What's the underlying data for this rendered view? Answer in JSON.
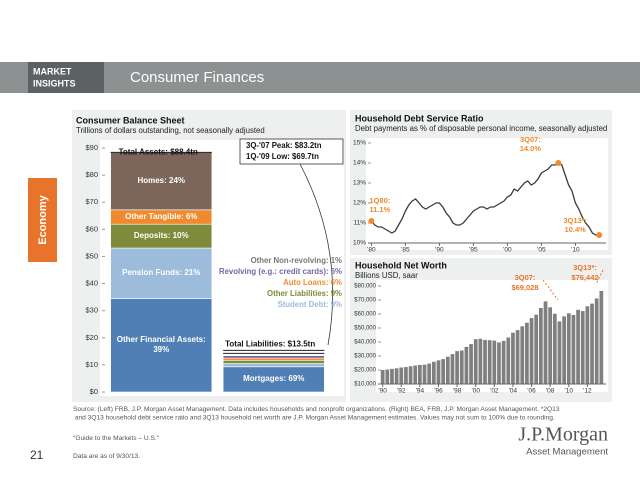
{
  "header": {
    "badge": [
      "MARKET",
      "INSIGHTS"
    ],
    "title": "Consumer Finances",
    "tab": "Economy"
  },
  "chart_data": [
    {
      "type": "stacked-bar",
      "title": "Consumer Balance Sheet",
      "subtitle": "Trillions of dollars outstanding, not seasonally adjusted",
      "categories": [
        null,
        null
      ],
      "series": [
        {
          "name": "Other Financial Assets: 39%",
          "color": "#4f7fb4",
          "values": [
            34.5,
            null
          ]
        },
        {
          "name": "Pension Funds: 21%",
          "color": "#9dbcdc",
          "values": [
            18.6,
            null
          ]
        },
        {
          "name": "Deposits: 10%",
          "color": "#7d8b3a",
          "values": [
            8.8,
            null
          ]
        },
        {
          "name": "Other Tangible: 6%",
          "color": "#ef8a2e",
          "values": [
            5.3,
            null
          ]
        },
        {
          "name": "Homes: 24%",
          "color": "#7b6659",
          "values": [
            21.2,
            null
          ]
        },
        {
          "name": "Mortgages: 69%",
          "color": "#4f7fb4",
          "values": [
            null,
            9.3
          ]
        },
        {
          "name": "Student Debt: 9%",
          "color": "#9dbcdc",
          "values": [
            null,
            1.2
          ]
        },
        {
          "name": "Other Liabilities: 9%",
          "color": "#7d8b3a",
          "values": [
            null,
            1.2
          ]
        },
        {
          "name": "Auto Loans: 6%",
          "color": "#ef8a2e",
          "values": [
            null,
            0.8
          ]
        },
        {
          "name": "Revolving (e.g.: credit cards): 6%",
          "color": "#7a62a8",
          "values": [
            null,
            0.9
          ]
        },
        {
          "name": "Other Non-revolving: 1%",
          "color": "#777777",
          "values": [
            null,
            0.1
          ]
        }
      ],
      "ylim": [
        0,
        90
      ],
      "yticks": [
        {
          "value": 0,
          "label": "$0"
        },
        {
          "value": 10,
          "label": "$10"
        },
        {
          "value": 20,
          "label": "$20"
        },
        {
          "value": 30,
          "label": "$30"
        },
        {
          "value": 40,
          "label": "$40"
        },
        {
          "value": 50,
          "label": "$50"
        },
        {
          "value": 60,
          "label": "$60"
        },
        {
          "value": 70,
          "label": "$70"
        },
        {
          "value": 80,
          "label": "$80"
        },
        {
          "value": 90,
          "label": "$90"
        }
      ],
      "annotations": {
        "total_assets": "Total Assets: $88.4tn",
        "total_liabilities": "Total Liabilities: $13.5tn",
        "peak": "3Q-'07 Peak: $83.2tn",
        "low": "1Q-'09 Low: $69.7tn"
      }
    },
    {
      "type": "line",
      "title": "Household Debt Service Ratio",
      "subtitle": "Debt payments as % of disposable personal income, seasonally adjusted",
      "color": "#3a3a3a",
      "marker_color": "#ef8a2e",
      "x": [
        1980,
        1980.5,
        1981,
        1981.5,
        1982,
        1982.5,
        1983,
        1983.5,
        1984,
        1984.5,
        1985,
        1985.5,
        1986,
        1986.5,
        1987,
        1987.5,
        1988,
        1988.5,
        1989,
        1989.5,
        1990,
        1990.5,
        1991,
        1991.5,
        1992,
        1992.5,
        1993,
        1993.5,
        1994,
        1994.5,
        1995,
        1995.5,
        1996,
        1996.5,
        1997,
        1997.5,
        1998,
        1998.5,
        1999,
        1999.5,
        2000,
        2000.5,
        2001,
        2001.5,
        2002,
        2002.5,
        2003,
        2003.5,
        2004,
        2004.5,
        2005,
        2005.5,
        2006,
        2006.5,
        2007,
        2007.5,
        2008,
        2008.5,
        2009,
        2009.5,
        2010,
        2010.5,
        2011,
        2011.5,
        2012,
        2012.5,
        2013,
        2013.5
      ],
      "values": [
        11.1,
        10.9,
        10.8,
        10.8,
        10.7,
        10.6,
        10.5,
        10.6,
        10.9,
        11.2,
        11.6,
        11.9,
        12.1,
        12.2,
        12.0,
        11.8,
        11.7,
        11.8,
        11.9,
        12.0,
        12.0,
        11.8,
        11.5,
        11.3,
        11.0,
        10.9,
        10.9,
        11.0,
        11.2,
        11.4,
        11.6,
        11.7,
        11.8,
        11.8,
        11.7,
        11.8,
        11.8,
        11.9,
        12.0,
        12.1,
        12.3,
        12.4,
        12.7,
        12.6,
        12.8,
        13.0,
        13.1,
        12.9,
        13.0,
        13.2,
        13.5,
        13.6,
        13.7,
        13.9,
        13.9,
        14.0,
        13.9,
        13.4,
        12.9,
        12.6,
        12.0,
        11.7,
        11.3,
        11.0,
        10.8,
        10.5,
        10.4,
        10.4
      ],
      "xlim": [
        1979.5,
        2014.5
      ],
      "xticks": [
        {
          "value": 1980,
          "label": "'80"
        },
        {
          "value": 1985,
          "label": "'85"
        },
        {
          "value": 1990,
          "label": "'90"
        },
        {
          "value": 1995,
          "label": "'95"
        },
        {
          "value": 2000,
          "label": "'00"
        },
        {
          "value": 2005,
          "label": "'05"
        },
        {
          "value": 2010,
          "label": "'10"
        }
      ],
      "ylim": [
        10,
        15
      ],
      "yticks": [
        {
          "value": 10,
          "label": "10%"
        },
        {
          "value": 11,
          "label": "11%"
        },
        {
          "value": 12,
          "label": "12%"
        },
        {
          "value": 13,
          "label": "13%"
        },
        {
          "value": 14,
          "label": "14%"
        },
        {
          "value": 15,
          "label": "15%"
        }
      ],
      "annotations": [
        [
          "1Q80:",
          "11.1%"
        ],
        [
          "3Q07:",
          "14.0%"
        ],
        [
          "3Q13*:",
          "10.4%"
        ]
      ]
    },
    {
      "type": "bar",
      "title": "Household Net Worth",
      "subtitle": "Billions USD, saar",
      "color": "#7f7f7f",
      "x": [
        1990,
        1990.5,
        1991,
        1991.5,
        1992,
        1992.5,
        1993,
        1993.5,
        1994,
        1994.5,
        1995,
        1995.5,
        1996,
        1996.5,
        1997,
        1997.5,
        1998,
        1998.5,
        1999,
        1999.5,
        2000,
        2000.5,
        2001,
        2001.5,
        2002,
        2002.5,
        2003,
        2003.5,
        2004,
        2004.5,
        2005,
        2005.5,
        2006,
        2006.5,
        2007,
        2007.5,
        2008,
        2008.5,
        2009,
        2009.5,
        2010,
        2010.5,
        2011,
        2011.5,
        2012,
        2012.5,
        2013,
        2013.5
      ],
      "values": [
        20000,
        20300,
        20800,
        21200,
        21800,
        22100,
        22700,
        23200,
        23600,
        23800,
        24600,
        25900,
        26900,
        27800,
        29500,
        31400,
        33500,
        33900,
        36500,
        38500,
        42000,
        42300,
        41500,
        41300,
        41000,
        39700,
        40800,
        43200,
        46600,
        48500,
        51200,
        53800,
        57100,
        59500,
        64300,
        69028,
        64800,
        60200,
        54700,
        58300,
        60500,
        59300,
        63000,
        62100,
        65500,
        67400,
        71100,
        76442
      ],
      "xlim": [
        1989.5,
        2014
      ],
      "xticks": [
        {
          "value": 1990,
          "label": "'90"
        },
        {
          "value": 1992,
          "label": "'92"
        },
        {
          "value": 1994,
          "label": "'94"
        },
        {
          "value": 1996,
          "label": "'96"
        },
        {
          "value": 1998,
          "label": "'98"
        },
        {
          "value": 2000,
          "label": "'00"
        },
        {
          "value": 2002,
          "label": "'02"
        },
        {
          "value": 2004,
          "label": "'04"
        },
        {
          "value": 2006,
          "label": "'06"
        },
        {
          "value": 2008,
          "label": "'08"
        },
        {
          "value": 2010,
          "label": "'10"
        },
        {
          "value": 2012,
          "label": "'12"
        }
      ],
      "ylim": [
        10000,
        80000
      ],
      "yticks": [
        {
          "value": 10000,
          "label": "$10,000"
        },
        {
          "value": 20000,
          "label": "$20,000"
        },
        {
          "value": 30000,
          "label": "$30,000"
        },
        {
          "value": 40000,
          "label": "$40,000"
        },
        {
          "value": 50000,
          "label": "$50,000"
        },
        {
          "value": 60000,
          "label": "$60,000"
        },
        {
          "value": 70000,
          "label": "$70,000"
        },
        {
          "value": 80000,
          "label": "$80,000"
        }
      ],
      "annotations": [
        [
          "3Q07:",
          "$69,028"
        ],
        [
          "3Q13*:",
          "$76,442"
        ]
      ]
    }
  ],
  "footer": {
    "source": "Source: (Left) FRB, J.P. Morgan Asset Management. Data includes households and nonprofit organizations. (Right) BEA, FRB, J.P. Morgan Asset Management. *2Q13 and 3Q13 household debt service ratio and 3Q13 household net worth are J.P. Morgan Asset Management estimates. Values may not sum to 100% due to rounding.",
    "guide": "\"Guide to the Markets – U.S.\"",
    "date": "Data are as of 9/30/13.",
    "page": "21",
    "logo": "J.P.Morgan",
    "logo_sub": "Asset Management"
  }
}
